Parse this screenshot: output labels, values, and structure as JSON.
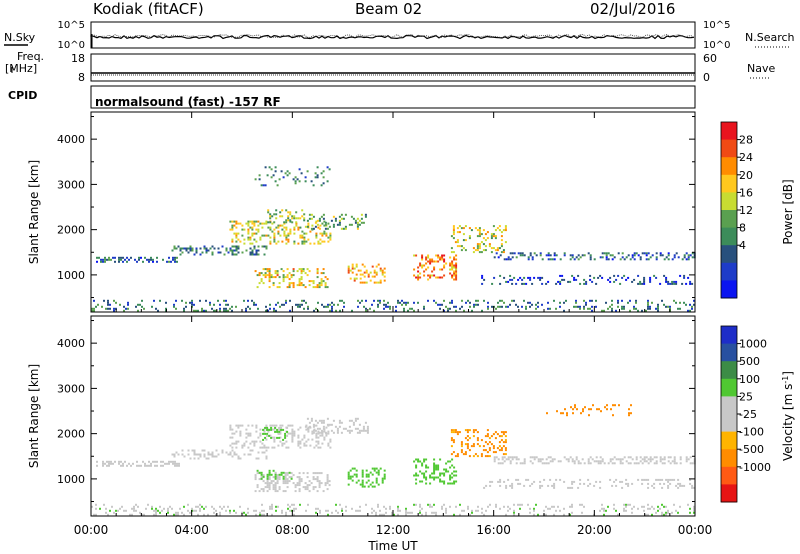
{
  "header": {
    "station": "Kodiak (fitACF)",
    "beam": "Beam 02",
    "date": "02/Jul/2016"
  },
  "status_panels": {
    "nsky_label": "N.Sky",
    "nsearch_label": "N.Search",
    "freq_label_line1": "Freq.",
    "freq_label_line2": "[MHz]",
    "nave_label": "Nave",
    "cpid_label": "CPID",
    "cpid_text": "normalsound (fast) -157 RF",
    "noise_ticks_left": [
      "10^5",
      "10^0"
    ],
    "noise_ticks_right": [
      "10^5",
      "10^0"
    ],
    "freq_ticks": [
      "18",
      "8"
    ],
    "nave_ticks": [
      "60",
      "0"
    ]
  },
  "colorbars": {
    "power": {
      "label": "Power [dB]",
      "ticks": [
        "28",
        "24",
        "20",
        "16",
        "12",
        "8",
        "4"
      ],
      "colors": [
        "#e8141e",
        "#f04a14",
        "#ff8c00",
        "#ffc81e",
        "#c8dc32",
        "#5aa050",
        "#3c8c5a",
        "#28507d",
        "#1e3cc8",
        "#0a14f0"
      ]
    },
    "velocity": {
      "label": "Velocity [m s^-1]",
      "ticks": [
        "1000",
        "500",
        "100",
        "25",
        "-25",
        "-100",
        "-500",
        "-1000"
      ],
      "colors": [
        "#1e2dc8",
        "#2850a0",
        "#3c8c46",
        "#50c832",
        "#c8c8c8",
        "#c8c8c8",
        "#ffb400",
        "#ff8c00",
        "#ff5a14",
        "#e61414"
      ]
    }
  },
  "chart_data": [
    {
      "type": "heatmap",
      "name": "power-panel",
      "quantity": "Power",
      "unit": "dB",
      "ylabel": "Slant Range [km]",
      "x_ticks": [
        "00:00",
        "04:00",
        "08:00",
        "12:00",
        "16:00",
        "20:00",
        "00:00"
      ],
      "xlim_hours": [
        0,
        24
      ],
      "y_ticks": [
        1000,
        2000,
        3000,
        4000
      ],
      "ylim": [
        180,
        4600
      ],
      "color_range": [
        0,
        32
      ],
      "regions": [
        {
          "t0": 0.2,
          "t1": 3.5,
          "r0": 1300,
          "r1": 1400,
          "v": 8,
          "density": 0.75
        },
        {
          "t0": 3.2,
          "t1": 7.0,
          "r0": 1450,
          "r1": 1650,
          "v": 10,
          "density": 0.6
        },
        {
          "t0": 5.5,
          "t1": 9.5,
          "r0": 1700,
          "r1": 2200,
          "v": 18,
          "density": 0.55
        },
        {
          "t0": 7.0,
          "t1": 8.5,
          "r0": 2150,
          "r1": 2450,
          "v": 16,
          "density": 0.6
        },
        {
          "t0": 8.5,
          "t1": 11.0,
          "r0": 2000,
          "r1": 2350,
          "v": 14,
          "density": 0.5
        },
        {
          "t0": 6.5,
          "t1": 9.5,
          "r0": 750,
          "r1": 1150,
          "v": 20,
          "density": 0.6
        },
        {
          "t0": 10.2,
          "t1": 11.7,
          "r0": 850,
          "r1": 1250,
          "v": 22,
          "density": 0.55
        },
        {
          "t0": 12.8,
          "t1": 14.5,
          "r0": 900,
          "r1": 1450,
          "v": 24,
          "density": 0.6
        },
        {
          "t0": 14.3,
          "t1": 16.5,
          "r0": 1500,
          "r1": 2100,
          "v": 18,
          "density": 0.5
        },
        {
          "t0": 16.0,
          "t1": 24.0,
          "r0": 1350,
          "r1": 1500,
          "v": 8,
          "density": 0.65
        },
        {
          "t0": 15.5,
          "t1": 24.0,
          "r0": 800,
          "r1": 1000,
          "v": 6,
          "density": 0.35
        },
        {
          "t0": 6.5,
          "t1": 9.5,
          "r0": 3000,
          "r1": 3400,
          "v": 10,
          "density": 0.3
        },
        {
          "t0": 0.0,
          "t1": 24.0,
          "r0": 200,
          "r1": 450,
          "v": 10,
          "density": 0.35
        }
      ]
    },
    {
      "type": "heatmap",
      "name": "velocity-panel",
      "quantity": "Velocity",
      "unit": "m s^-1",
      "ylabel": "Slant Range [km]",
      "xlabel": "Time UT",
      "x_ticks": [
        "00:00",
        "04:00",
        "08:00",
        "12:00",
        "16:00",
        "20:00",
        "00:00"
      ],
      "xlim_hours": [
        0,
        24
      ],
      "y_ticks": [
        1000,
        2000,
        3000,
        4000
      ],
      "ylim": [
        180,
        4600
      ],
      "regions": [
        {
          "t0": 0.2,
          "t1": 3.5,
          "r0": 1300,
          "r1": 1400,
          "v": 0,
          "density": 0.75
        },
        {
          "t0": 3.2,
          "t1": 7.0,
          "r0": 1450,
          "r1": 1650,
          "v": 0,
          "density": 0.6
        },
        {
          "t0": 5.5,
          "t1": 9.5,
          "r0": 1700,
          "r1": 2200,
          "v": 0,
          "density": 0.55
        },
        {
          "t0": 6.8,
          "t1": 7.8,
          "r0": 1850,
          "r1": 2150,
          "v": 150,
          "density": 0.6
        },
        {
          "t0": 8.5,
          "t1": 11.0,
          "r0": 2000,
          "r1": 2350,
          "v": 0,
          "density": 0.5
        },
        {
          "t0": 6.5,
          "t1": 9.5,
          "r0": 750,
          "r1": 1150,
          "v": 0,
          "density": 0.6
        },
        {
          "t0": 6.5,
          "t1": 8.0,
          "r0": 1000,
          "r1": 1200,
          "v": 150,
          "density": 0.5
        },
        {
          "t0": 10.2,
          "t1": 11.7,
          "r0": 850,
          "r1": 1250,
          "v": 200,
          "density": 0.55
        },
        {
          "t0": 12.8,
          "t1": 14.5,
          "r0": 900,
          "r1": 1450,
          "v": 200,
          "density": 0.6
        },
        {
          "t0": 14.3,
          "t1": 16.5,
          "r0": 1500,
          "r1": 2100,
          "v": -150,
          "density": 0.5
        },
        {
          "t0": 16.0,
          "t1": 24.0,
          "r0": 1350,
          "r1": 1500,
          "v": 0,
          "density": 0.65
        },
        {
          "t0": 15.5,
          "t1": 24.0,
          "r0": 800,
          "r1": 1000,
          "v": 0,
          "density": 0.35
        },
        {
          "t0": 18.0,
          "t1": 21.5,
          "r0": 2400,
          "r1": 2650,
          "v": -200,
          "density": 0.3
        },
        {
          "t0": 0.0,
          "t1": 24.0,
          "r0": 200,
          "r1": 450,
          "v": 50,
          "density": 0.35
        }
      ]
    }
  ]
}
